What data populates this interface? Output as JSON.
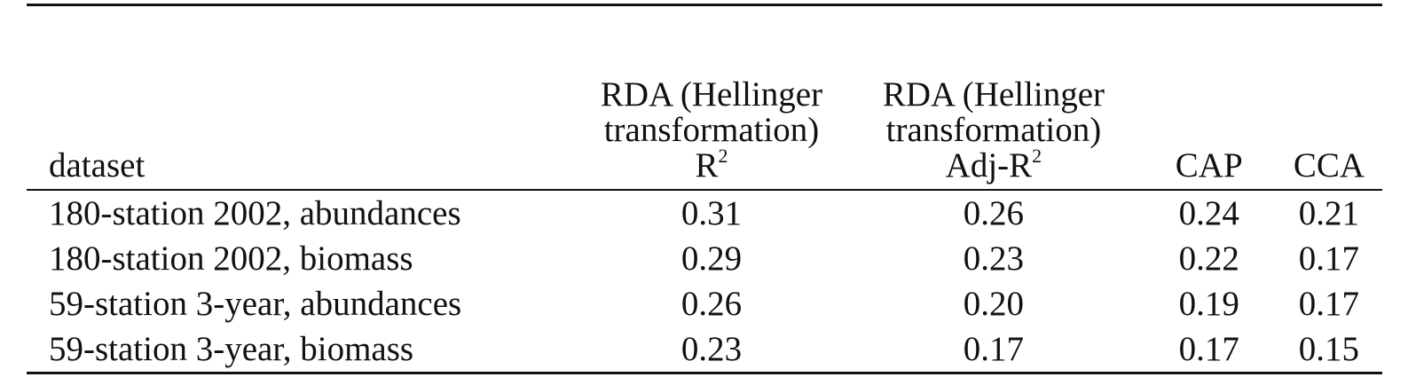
{
  "table": {
    "header": [
      {
        "text": "dataset"
      },
      {
        "text": "RDA (Hellinger transformation)",
        "stat": "R",
        "sup": "2"
      },
      {
        "text": "RDA (Hellinger transformation)",
        "stat": "Adj-R",
        "sup": "2"
      },
      {
        "text": "CAP"
      },
      {
        "text": "CCA"
      }
    ],
    "rows": [
      [
        "180-station 2002, abundances",
        "0.31",
        "0.26",
        "0.24",
        "0.21"
      ],
      [
        "180-station 2002, biomass",
        "0.29",
        "0.23",
        "0.22",
        "0.17"
      ],
      [
        "59-station 3-year, abundances",
        "0.26",
        "0.20",
        "0.19",
        "0.17"
      ],
      [
        "59-station 3-year, biomass",
        "0.23",
        "0.17",
        "0.17",
        "0.15"
      ]
    ]
  }
}
